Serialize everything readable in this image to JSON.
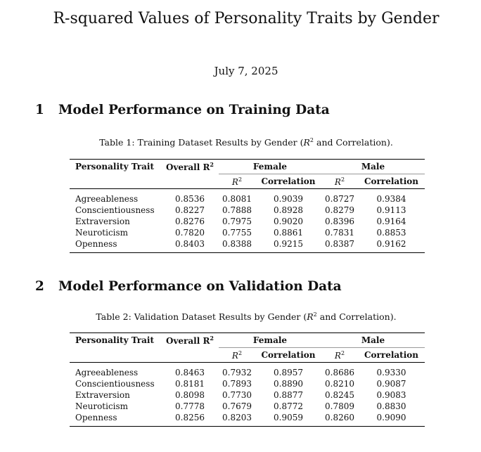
{
  "title": "R-squared Values of Personality Traits by Gender",
  "date": "July 7, 2025",
  "sections": [
    {
      "number": "1",
      "heading": "Model Performance on Training Data",
      "caption_prefix": "Table 1: Training Dataset Results by Gender (",
      "caption_suffix": " and Correlation).",
      "rows": [
        {
          "trait": "Agreeableness",
          "overall": "0.8536",
          "f_r2": "0.8081",
          "f_corr": "0.9039",
          "m_r2": "0.8727",
          "m_corr": "0.9384"
        },
        {
          "trait": "Conscientiousness",
          "overall": "0.8227",
          "f_r2": "0.7888",
          "f_corr": "0.8928",
          "m_r2": "0.8279",
          "m_corr": "0.9113"
        },
        {
          "trait": "Extraversion",
          "overall": "0.8276",
          "f_r2": "0.7975",
          "f_corr": "0.9020",
          "m_r2": "0.8396",
          "m_corr": "0.9164"
        },
        {
          "trait": "Neuroticism",
          "overall": "0.7820",
          "f_r2": "0.7755",
          "f_corr": "0.8861",
          "m_r2": "0.7831",
          "m_corr": "0.8853"
        },
        {
          "trait": "Openness",
          "overall": "0.8403",
          "f_r2": "0.8388",
          "f_corr": "0.9215",
          "m_r2": "0.8387",
          "m_corr": "0.9162"
        }
      ]
    },
    {
      "number": "2",
      "heading": "Model Performance on Validation Data",
      "caption_prefix": "Table 2: Validation Dataset Results by Gender (",
      "caption_suffix": " and Correlation).",
      "rows": [
        {
          "trait": "Agreeableness",
          "overall": "0.8463",
          "f_r2": "0.7932",
          "f_corr": "0.8957",
          "m_r2": "0.8686",
          "m_corr": "0.9330"
        },
        {
          "trait": "Conscientiousness",
          "overall": "0.8181",
          "f_r2": "0.7893",
          "f_corr": "0.8890",
          "m_r2": "0.8210",
          "m_corr": "0.9087"
        },
        {
          "trait": "Extraversion",
          "overall": "0.8098",
          "f_r2": "0.7730",
          "f_corr": "0.8877",
          "m_r2": "0.8245",
          "m_corr": "0.9083"
        },
        {
          "trait": "Neuroticism",
          "overall": "0.7778",
          "f_r2": "0.7679",
          "f_corr": "0.8772",
          "m_r2": "0.7809",
          "m_corr": "0.8830"
        },
        {
          "trait": "Openness",
          "overall": "0.8256",
          "f_r2": "0.8203",
          "f_corr": "0.9059",
          "m_r2": "0.8260",
          "m_corr": "0.9090"
        }
      ]
    }
  ],
  "headers": {
    "trait": "Personality Trait",
    "overall": "Overall R",
    "female": "Female",
    "male": "Male",
    "r2": "R",
    "correlation": "Correlation",
    "sup": "2"
  }
}
